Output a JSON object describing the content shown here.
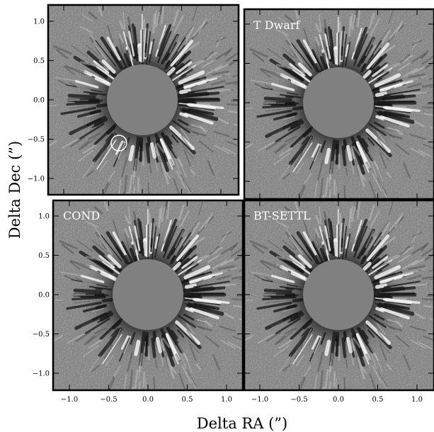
{
  "figure": {
    "x_axis_label": "Delta RA (”)",
    "y_axis_label": "Delta Dec (”)",
    "y_tick_labels": [
      "1.0",
      "0.5",
      "0.0",
      "−0.5",
      "−1.0"
    ],
    "x_tick_labels": [
      "−1.0",
      "−0.5",
      "0.0",
      "0.5",
      "1.0"
    ],
    "y_tick_values": [
      1.0,
      0.5,
      0.0,
      -0.5,
      -1.0
    ],
    "x_tick_values": [
      -1.0,
      -0.5,
      0.0,
      0.5,
      1.0
    ],
    "axis_range": [
      -1.2,
      1.2
    ],
    "mask_radius": 0.45,
    "candidate_marker": {
      "ra": -0.3,
      "dec": -0.55
    }
  },
  "panels": {
    "top_left": {
      "label": ""
    },
    "top_right": {
      "label": "T Dwarf"
    },
    "bottom_left": {
      "label": "COND"
    },
    "bottom_right": {
      "label": "BT-SETTL"
    }
  },
  "colors": {
    "background_gray": "#8a8a8a",
    "mask_gray": "#808080",
    "dark_speckle": "#151515",
    "bright_speckle": "#f2f2f2",
    "frame": "#000000",
    "label_text": "#ffffff"
  }
}
